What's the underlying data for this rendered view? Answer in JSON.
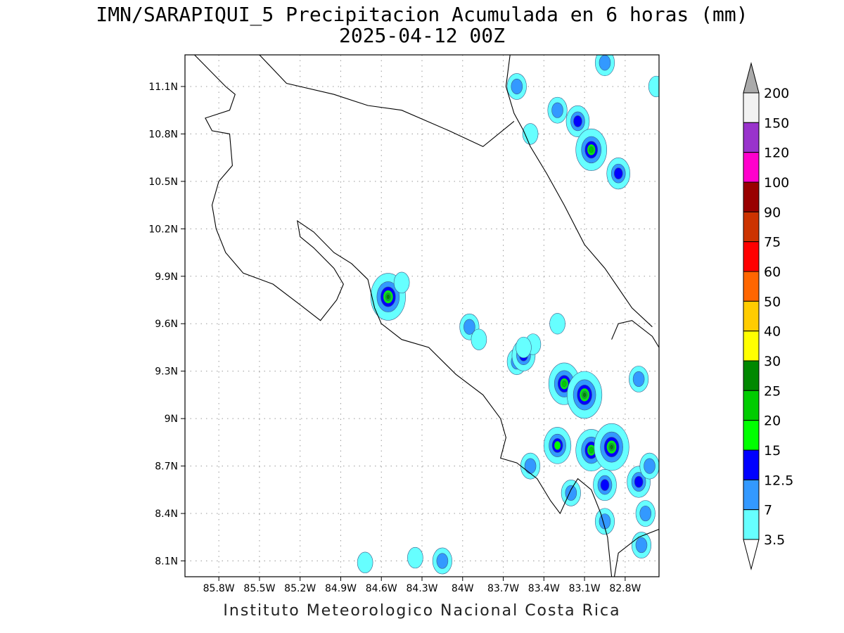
{
  "title": {
    "line1": "IMN/SARAPIQUI_5 Precipitacion Acumulada en 6 horas (mm)",
    "line2": "2025-04-12 00Z"
  },
  "footer": "Instituto Meteorologico Nacional Costa Rica",
  "map": {
    "lon_range": [
      -86.05,
      -82.55
    ],
    "lat_range": [
      8.0,
      11.3
    ],
    "lon_ticks": [
      -85.8,
      -85.5,
      -85.2,
      -84.9,
      -84.6,
      -84.3,
      -84.0,
      -83.7,
      -83.4,
      -83.1,
      -82.8
    ],
    "lon_tick_labels": [
      "85.8W",
      "85.5W",
      "85.2W",
      "84.9W",
      "84.6W",
      "84.3W",
      "84W",
      "83.7W",
      "83.4W",
      "83.1W",
      "82.8W"
    ],
    "lat_ticks": [
      8.1,
      8.4,
      8.7,
      9.0,
      9.3,
      9.6,
      9.9,
      10.2,
      10.5,
      10.8,
      11.1
    ],
    "lat_tick_labels": [
      "8.1N",
      "8.4N",
      "8.7N",
      "9N",
      "9.3N",
      "9.6N",
      "9.9N",
      "10.2N",
      "10.5N",
      "10.8N",
      "11.1N"
    ],
    "gridlines": "dotted"
  },
  "colorbar": {
    "levels": [
      "3.5",
      "7",
      "12.5",
      "15",
      "20",
      "25",
      "30",
      "40",
      "50",
      "60",
      "75",
      "90",
      "100",
      "120",
      "150",
      "200"
    ],
    "colors": [
      "#ffffff",
      "#66ffff",
      "#3399ff",
      "#0000ff",
      "#00ff00",
      "#00cc00",
      "#008800",
      "#ffff00",
      "#ffcc00",
      "#ff6600",
      "#ff0000",
      "#cc3300",
      "#990000",
      "#ff00cc",
      "#9933cc",
      "#f2f2f2",
      "#aaaaaa"
    ]
  },
  "precip_cells": [
    {
      "lon": -84.55,
      "lat": 9.77,
      "level": 6
    },
    {
      "lon": -84.45,
      "lat": 9.86,
      "level": 1
    },
    {
      "lon": -83.95,
      "lat": 9.58,
      "level": 2
    },
    {
      "lon": -83.88,
      "lat": 9.5,
      "level": 1
    },
    {
      "lon": -83.6,
      "lat": 9.36,
      "level": 2
    },
    {
      "lon": -83.55,
      "lat": 9.4,
      "level": 3
    },
    {
      "lon": -83.48,
      "lat": 9.47,
      "level": 1
    },
    {
      "lon": -83.25,
      "lat": 9.22,
      "level": 5
    },
    {
      "lon": -83.1,
      "lat": 9.15,
      "level": 6
    },
    {
      "lon": -83.3,
      "lat": 8.83,
      "level": 4
    },
    {
      "lon": -83.05,
      "lat": 8.8,
      "level": 5
    },
    {
      "lon": -82.9,
      "lat": 8.82,
      "level": 6
    },
    {
      "lon": -82.95,
      "lat": 8.58,
      "level": 3
    },
    {
      "lon": -82.7,
      "lat": 8.6,
      "level": 3
    },
    {
      "lon": -82.62,
      "lat": 8.7,
      "level": 2
    },
    {
      "lon": -82.65,
      "lat": 8.4,
      "level": 2
    },
    {
      "lon": -82.68,
      "lat": 8.2,
      "level": 2
    },
    {
      "lon": -82.95,
      "lat": 8.35,
      "level": 2
    },
    {
      "lon": -83.2,
      "lat": 8.53,
      "level": 2
    },
    {
      "lon": -83.5,
      "lat": 8.7,
      "level": 2
    },
    {
      "lon": -82.7,
      "lat": 9.25,
      "level": 2
    },
    {
      "lon": -83.15,
      "lat": 10.88,
      "level": 3
    },
    {
      "lon": -83.05,
      "lat": 10.7,
      "level": 5
    },
    {
      "lon": -82.85,
      "lat": 10.55,
      "level": 3
    },
    {
      "lon": -83.3,
      "lat": 10.95,
      "level": 2
    },
    {
      "lon": -83.5,
      "lat": 10.8,
      "level": 1
    },
    {
      "lon": -83.6,
      "lat": 11.1,
      "level": 2
    },
    {
      "lon": -82.95,
      "lat": 11.25,
      "level": 2
    },
    {
      "lon": -82.57,
      "lat": 11.1,
      "level": 1
    },
    {
      "lon": -84.15,
      "lat": 8.1,
      "level": 2
    },
    {
      "lon": -84.35,
      "lat": 8.12,
      "level": 1
    },
    {
      "lon": -84.72,
      "lat": 8.09,
      "level": 1
    },
    {
      "lon": -83.55,
      "lat": 9.45,
      "level": 1
    },
    {
      "lon": -83.3,
      "lat": 9.6,
      "level": 1
    }
  ],
  "coastlines": [
    [
      [
        -85.98,
        11.3
      ],
      [
        -85.75,
        11.1
      ],
      [
        -85.68,
        11.05
      ],
      [
        -85.72,
        10.95
      ],
      [
        -85.9,
        10.9
      ],
      [
        -85.85,
        10.82
      ],
      [
        -85.72,
        10.8
      ],
      [
        -85.7,
        10.6
      ],
      [
        -85.8,
        10.5
      ],
      [
        -85.85,
        10.35
      ],
      [
        -85.82,
        10.2
      ],
      [
        -85.75,
        10.05
      ],
      [
        -85.62,
        9.92
      ],
      [
        -85.4,
        9.85
      ],
      [
        -85.2,
        9.72
      ],
      [
        -85.05,
        9.62
      ],
      [
        -84.93,
        9.75
      ],
      [
        -84.88,
        9.85
      ],
      [
        -84.95,
        9.95
      ],
      [
        -85.1,
        10.08
      ],
      [
        -85.2,
        10.15
      ],
      [
        -85.22,
        10.25
      ],
      [
        -85.1,
        10.18
      ],
      [
        -84.95,
        10.05
      ],
      [
        -84.82,
        9.98
      ],
      [
        -84.7,
        9.88
      ],
      [
        -84.65,
        9.7
      ],
      [
        -84.6,
        9.6
      ],
      [
        -84.45,
        9.5
      ],
      [
        -84.25,
        9.45
      ],
      [
        -84.05,
        9.28
      ],
      [
        -83.85,
        9.15
      ],
      [
        -83.72,
        9.0
      ],
      [
        -83.68,
        8.88
      ],
      [
        -83.72,
        8.75
      ],
      [
        -83.6,
        8.72
      ],
      [
        -83.45,
        8.62
      ],
      [
        -83.35,
        8.48
      ],
      [
        -83.28,
        8.4
      ],
      [
        -83.2,
        8.55
      ],
      [
        -83.15,
        8.62
      ],
      [
        -83.05,
        8.55
      ],
      [
        -82.98,
        8.4
      ],
      [
        -82.93,
        8.25
      ],
      [
        -82.9,
        8.0
      ]
    ],
    [
      [
        -83.65,
        11.3
      ],
      [
        -83.68,
        11.1
      ],
      [
        -83.62,
        10.93
      ],
      [
        -83.55,
        10.82
      ],
      [
        -83.5,
        10.72
      ],
      [
        -83.38,
        10.55
      ],
      [
        -83.25,
        10.35
      ],
      [
        -83.1,
        10.1
      ],
      [
        -82.95,
        9.95
      ],
      [
        -82.75,
        9.7
      ],
      [
        -82.6,
        9.58
      ]
    ],
    [
      [
        -85.5,
        11.3
      ],
      [
        -85.3,
        11.12
      ],
      [
        -84.95,
        11.05
      ],
      [
        -84.7,
        10.98
      ],
      [
        -84.45,
        10.95
      ],
      [
        -84.1,
        10.82
      ],
      [
        -83.85,
        10.72
      ],
      [
        -83.62,
        10.88
      ]
    ],
    [
      [
        -82.9,
        9.5
      ],
      [
        -82.85,
        9.6
      ],
      [
        -82.75,
        9.62
      ],
      [
        -82.6,
        9.52
      ],
      [
        -82.55,
        9.45
      ]
    ],
    [
      [
        -82.55,
        8.3
      ],
      [
        -82.7,
        8.25
      ],
      [
        -82.85,
        8.15
      ],
      [
        -82.88,
        8.0
      ]
    ]
  ]
}
